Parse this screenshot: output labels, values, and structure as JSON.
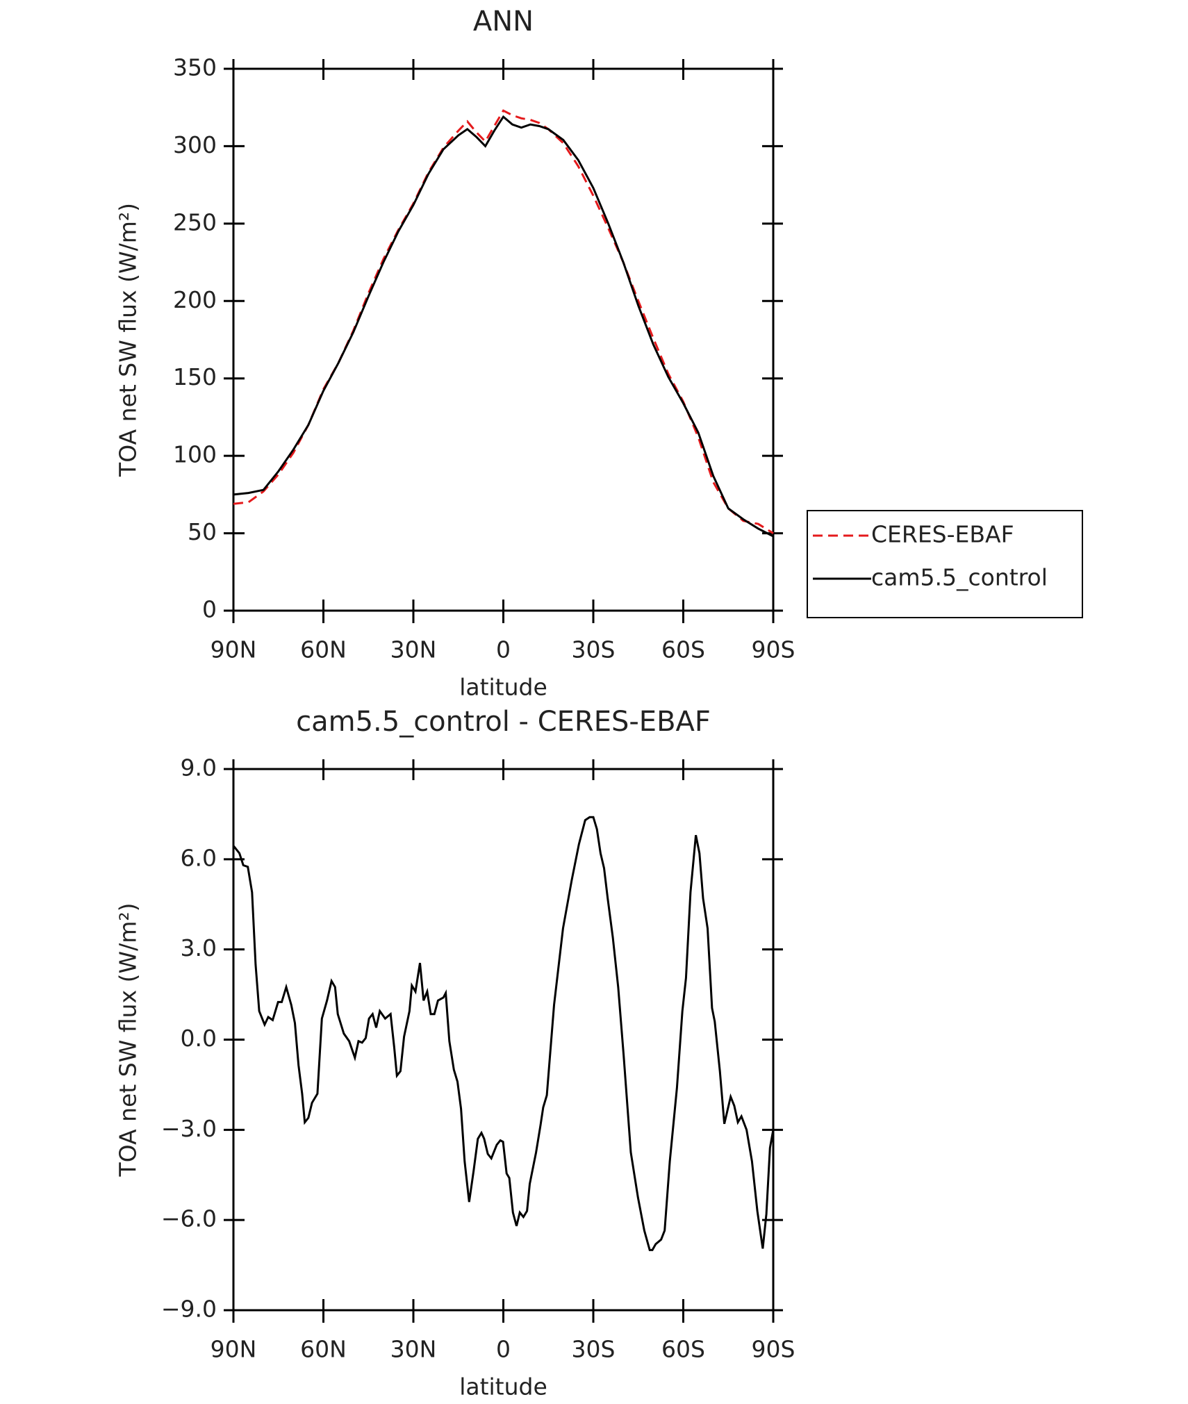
{
  "chart_data": [
    {
      "type": "line",
      "title": "ANN",
      "xlabel": "latitude",
      "ylabel": "TOA net SW flux (W/m²)",
      "x": [
        90,
        85,
        80,
        75,
        70,
        65,
        60,
        55,
        50,
        45,
        40,
        35,
        30,
        25,
        20,
        15,
        12,
        9,
        6,
        3,
        0,
        -3,
        -6,
        -9,
        -12,
        -15,
        -20,
        -25,
        -30,
        -35,
        -40,
        -45,
        -50,
        -55,
        -60,
        -65,
        -70,
        -75,
        -80,
        -85,
        -90
      ],
      "series": [
        {
          "name": "CERES-EBAF",
          "color": "#e41a1c",
          "linestyle": "dashed",
          "values": [
            69,
            70,
            77,
            88,
            102,
            120,
            143,
            160,
            181,
            205,
            227,
            246,
            263,
            283,
            299,
            310,
            316,
            309,
            303,
            313,
            323,
            320,
            318,
            317,
            315,
            311,
            302,
            287,
            268,
            247,
            225,
            200,
            176,
            153,
            135,
            112,
            83,
            66,
            58,
            56,
            50
          ]
        },
        {
          "name": "cam5.5_control",
          "color": "#000000",
          "linestyle": "solid",
          "values": [
            75,
            76,
            78,
            90,
            104,
            120,
            142,
            160,
            180,
            203,
            225,
            245,
            262,
            282,
            298,
            307,
            311,
            306,
            300,
            310,
            319,
            314,
            312,
            314,
            313,
            311,
            304,
            291,
            273,
            250,
            225,
            197,
            172,
            151,
            134,
            115,
            87,
            66,
            59,
            53,
            48
          ]
        }
      ],
      "xlim": [
        90,
        -90
      ],
      "xticks": [
        {
          "value": 90,
          "label": "90N"
        },
        {
          "value": 60,
          "label": "60N"
        },
        {
          "value": 30,
          "label": "30N"
        },
        0,
        {
          "value": -30,
          "label": "30S"
        },
        {
          "value": -60,
          "label": "60S"
        },
        {
          "value": -90,
          "label": "90S"
        }
      ],
      "ylim": [
        0,
        350
      ],
      "yticks": [
        0,
        50,
        100,
        150,
        200,
        250,
        300,
        350
      ],
      "legend": "right"
    },
    {
      "type": "line",
      "title": "cam5.5_control - CERES-EBAF",
      "xlabel": "latitude",
      "ylabel": "TOA net SW flux (W/m²)",
      "x": [
        90,
        88,
        86.7,
        85.2,
        83.8,
        82.6,
        81.4,
        79.6,
        78.4,
        76.9,
        75.1,
        73.9,
        72.4,
        70.7,
        69.5,
        68.3,
        67.1,
        66.2,
        65,
        63.8,
        62,
        60.5,
        58.8,
        57.3,
        56.1,
        55.2,
        53.2,
        51.4,
        49.5,
        48.3,
        47.1,
        45.9,
        44.8,
        43.6,
        42.4,
        41.2,
        39.4,
        37.6,
        36.4,
        35.5,
        34.3,
        33.1,
        31.3,
        30.5,
        29.3,
        27.8,
        26.6,
        25.4,
        24.2,
        23,
        21.8,
        20,
        19.2,
        18,
        16.5,
        15.3,
        14.1,
        12.9,
        11.4,
        9.9,
        8.5,
        7.3,
        6.4,
        5.2,
        4,
        2.2,
        1,
        0.1,
        -1.1,
        -2,
        -3.2,
        -4.4,
        -5.5,
        -6.7,
        -7.9,
        -8.8,
        -10.9,
        -12.4,
        -13.3,
        -14.5,
        -16.9,
        -19.9,
        -22.8,
        -25.2,
        -27.3,
        -28.8,
        -30,
        -31.2,
        -32.4,
        -33.6,
        -34.8,
        -36.5,
        -38.3,
        -40.1,
        -42.5,
        -44.9,
        -47,
        -48.8,
        -49.7,
        -50.8,
        -52.6,
        -53.8,
        -55.5,
        -57.9,
        -59.7,
        -60.9,
        -62.4,
        -64.2,
        -65.4,
        -66.6,
        -68.1,
        -69.6,
        -70.5,
        -72.2,
        -73.7,
        -75.8,
        -77,
        -78.2,
        -79.4,
        -81.1,
        -82.9,
        -84.7,
        -86.5,
        -87.7,
        -88.9,
        -90
      ],
      "series": [
        {
          "name": "cam5.5_control - CERES-EBAF",
          "color": "#000000",
          "linestyle": "solid",
          "values": [
            6.45,
            6.2,
            5.8,
            5.75,
            4.9,
            2.5,
            0.95,
            0.5,
            0.75,
            0.65,
            1.25,
            1.25,
            1.75,
            1.15,
            0.55,
            -0.85,
            -1.8,
            -2.75,
            -2.6,
            -2.1,
            -1.8,
            0.7,
            1.3,
            1.95,
            1.75,
            0.85,
            0.2,
            -0.05,
            -0.6,
            -0.05,
            -0.1,
            0.05,
            0.7,
            0.85,
            0.4,
            0.95,
            0.7,
            0.85,
            -0.25,
            -1.2,
            -1.05,
            0.1,
            0.95,
            1.8,
            1.6,
            2.55,
            1.3,
            1.6,
            0.85,
            0.85,
            1.3,
            1.4,
            1.55,
            -0.05,
            -1,
            -1.4,
            -2.3,
            -4.05,
            -5.4,
            -4.35,
            -3.3,
            -3.1,
            -3.3,
            -3.8,
            -3.95,
            -3.5,
            -3.35,
            -3.4,
            -4.45,
            -4.6,
            -5.75,
            -6.2,
            -5.75,
            -5.9,
            -5.7,
            -4.8,
            -3.75,
            -2.85,
            -2.25,
            -1.85,
            1.15,
            3.7,
            5.3,
            6.5,
            7.3,
            7.4,
            7.4,
            7.0,
            6.2,
            5.7,
            4.7,
            3.4,
            1.75,
            -0.5,
            -3.75,
            -5.25,
            -6.35,
            -7,
            -7,
            -6.8,
            -6.65,
            -6.35,
            -4.05,
            -1.6,
            0.95,
            2.05,
            4.9,
            6.8,
            6.2,
            4.7,
            3.7,
            1.05,
            0.6,
            -1.05,
            -2.8,
            -1.9,
            -2.2,
            -2.75,
            -2.55,
            -3,
            -4.05,
            -5.7,
            -6.95,
            -5.8,
            -3.6,
            -3
          ]
        }
      ],
      "xlim": [
        90,
        -90
      ],
      "xticks": [
        {
          "value": 90,
          "label": "90N"
        },
        {
          "value": 60,
          "label": "60N"
        },
        {
          "value": 30,
          "label": "30N"
        },
        0,
        {
          "value": -30,
          "label": "30S"
        },
        {
          "value": -60,
          "label": "60S"
        },
        {
          "value": -90,
          "label": "90S"
        }
      ],
      "ylim": [
        -9,
        9
      ],
      "yticks": [
        {
          "value": -9,
          "label": "−9.0"
        },
        {
          "value": -6,
          "label": "−6.0"
        },
        {
          "value": -3,
          "label": "−3.0"
        },
        {
          "value": 0,
          "label": "0.0"
        },
        {
          "value": 3,
          "label": "3.0"
        },
        {
          "value": 6,
          "label": "6.0"
        },
        {
          "value": 9,
          "label": "9.0"
        }
      ]
    }
  ]
}
